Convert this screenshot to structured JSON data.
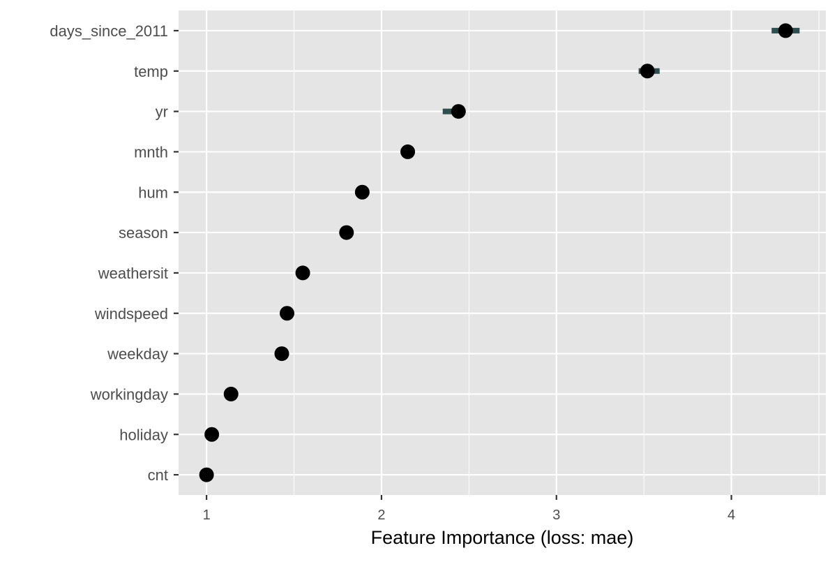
{
  "chart_data": {
    "type": "scatter",
    "title": "",
    "xlabel": "Feature Importance (loss: mae)",
    "ylabel": "",
    "xlim": [
      0.84,
      4.54
    ],
    "xticks": [
      1,
      2,
      3,
      4
    ],
    "grid": true,
    "legend": "none",
    "features": [
      "days_since_2011",
      "temp",
      "yr",
      "mnth",
      "hum",
      "season",
      "weathersit",
      "windspeed",
      "weekday",
      "workingday",
      "holiday",
      "cnt"
    ],
    "importance": [
      4.31,
      3.52,
      2.44,
      2.15,
      1.89,
      1.8,
      1.55,
      1.46,
      1.43,
      1.14,
      1.03,
      1.0
    ],
    "interval_low": [
      4.23,
      3.47,
      2.35,
      2.13,
      1.89,
      1.8,
      1.55,
      1.46,
      1.43,
      1.14,
      1.03,
      1.0
    ],
    "interval_high": [
      4.39,
      3.59,
      2.44,
      2.15,
      1.89,
      1.8,
      1.55,
      1.46,
      1.43,
      1.14,
      1.03,
      1.0
    ]
  },
  "colors": {
    "panel_bg": "#e5e5e5",
    "grid_major": "#ffffff",
    "point": "#000000",
    "interval": "#2f4f4f"
  }
}
